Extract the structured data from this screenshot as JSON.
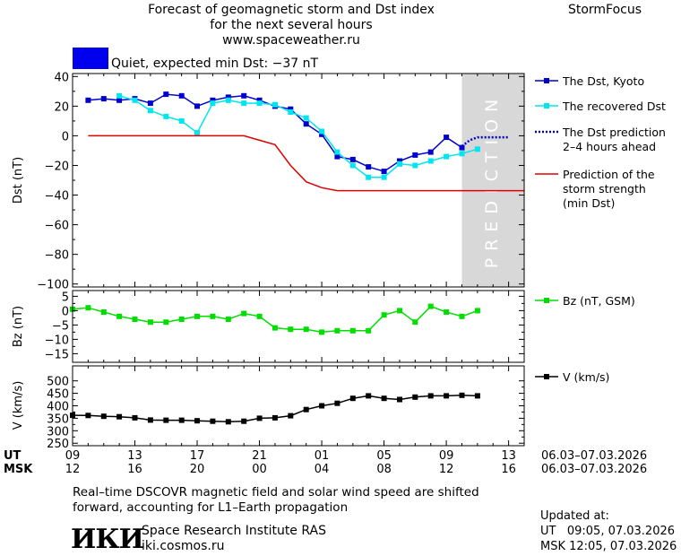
{
  "header": {
    "title_line1": "Forecast of geomagnetic storm and Dst index",
    "title_line2": "for the next several hours",
    "title_line3": "www.spaceweather.ru",
    "brand": "StormFocus"
  },
  "status": {
    "text": "Quiet, expected min Dst: −37 nT",
    "color": "#0000ee"
  },
  "chart_data": [
    {
      "type": "line",
      "ylabel": "Dst (nT)",
      "ylim": [
        -102,
        42
      ],
      "yticks": [
        40,
        20,
        0,
        -20,
        -40,
        -60,
        -80,
        -100
      ],
      "ytick_labels": [
        "40",
        "20",
        "0",
        "−20",
        "−40",
        "−60",
        "−80",
        "−100"
      ],
      "prediction_band": {
        "label": "PREDICTION",
        "x_start": 10,
        "x_end": 14,
        "color": "#d8d8d8"
      },
      "series": [
        {
          "name": "The Dst, Kyoto",
          "color": "#0000cc",
          "marker": "square",
          "x": [
            -14,
            -13,
            -12,
            -11,
            -10,
            -9,
            -8,
            -7,
            -6,
            -5,
            -4,
            -3,
            -2,
            -1,
            0,
            1,
            2,
            3,
            4,
            5,
            6,
            7,
            8,
            9,
            10
          ],
          "y": [
            24,
            25,
            24,
            25,
            22,
            28,
            27,
            20,
            24,
            26,
            27,
            24,
            20,
            18,
            8,
            1,
            -14,
            -16,
            -21,
            -24,
            -17,
            -13,
            -11,
            -1,
            -8
          ]
        },
        {
          "name": "The recovered Dst",
          "color": "#00e5ee",
          "marker": "square",
          "x": [
            -12,
            -11,
            -10,
            -9,
            -8,
            -7,
            -6,
            -5,
            -4,
            -3,
            -2,
            -1,
            0,
            1,
            2,
            3,
            4,
            5,
            6,
            7,
            8,
            9,
            10,
            11
          ],
          "y": [
            27,
            24,
            17,
            13,
            10,
            2,
            22,
            24,
            22,
            22,
            21,
            16,
            12,
            3,
            -11,
            -20,
            -28,
            -28,
            -19,
            -20,
            -17,
            -14,
            -12,
            -9
          ]
        },
        {
          "name": "The Dst prediction 2–4 hours ahead",
          "color": "#0000cc",
          "dashed": true,
          "x": [
            10,
            10.5,
            11,
            11.5,
            12,
            13
          ],
          "y": [
            -7,
            -3,
            -1,
            -1,
            -1,
            -1
          ]
        },
        {
          "name": "Prediction of the storm strength (min Dst)",
          "color": "#dd0000",
          "x": [
            -14,
            -4,
            -3,
            -2,
            -1,
            0,
            1,
            2,
            3,
            4,
            5,
            6,
            7,
            8,
            9,
            10,
            11,
            12,
            13,
            14
          ],
          "y": [
            0,
            0,
            -3,
            -6,
            -20,
            -31,
            -35,
            -37,
            -37,
            -37,
            -37,
            -37,
            -37,
            -37,
            -37,
            -37,
            -37,
            -37,
            -37,
            -37
          ]
        }
      ],
      "legend_lines": [
        [
          "The Dst, Kyoto"
        ],
        [
          "The recovered Dst"
        ],
        [
          "The Dst prediction",
          "2–4 hours ahead"
        ],
        [
          "Prediction of the",
          "storm strength",
          "(min Dst)"
        ]
      ]
    },
    {
      "type": "line",
      "ylabel": "Bz (nT)",
      "ylim": [
        -18,
        7
      ],
      "yticks": [
        5,
        0,
        -5,
        -10,
        -15
      ],
      "ytick_labels": [
        "5",
        "0",
        "−5",
        "−10",
        "−15"
      ],
      "series": [
        {
          "name": "Bz (nT, GSM)",
          "color": "#00dd00",
          "marker": "square",
          "x": [
            -15,
            -14,
            -13,
            -12,
            -11,
            -10,
            -9,
            -8,
            -7,
            -6,
            -5,
            -4,
            -3,
            -2,
            -1,
            0,
            1,
            2,
            3,
            4,
            5,
            6,
            7,
            8,
            9,
            10,
            11
          ],
          "y": [
            0.5,
            1,
            -0.5,
            -2,
            -3,
            -4,
            -4,
            -3,
            -2,
            -2,
            -3,
            -1,
            -2,
            -6,
            -6.5,
            -6.5,
            -7.5,
            -7,
            -7,
            -7,
            -1.5,
            0,
            -4,
            1.5,
            -0.5,
            -2,
            0
          ]
        }
      ]
    },
    {
      "type": "line",
      "ylabel": "V (km/s)",
      "ylim": [
        240,
        560
      ],
      "yticks": [
        500,
        450,
        400,
        350,
        300,
        250
      ],
      "ytick_labels": [
        "500",
        "450",
        "400",
        "350",
        "300",
        "250"
      ],
      "series": [
        {
          "name": "V (km/s)",
          "color": "#000000",
          "marker": "square",
          "x": [
            -15,
            -14,
            -13,
            -12,
            -11,
            -10,
            -9,
            -8,
            -7,
            -6,
            -5,
            -4,
            -3,
            -2,
            -1,
            0,
            1,
            2,
            3,
            4,
            5,
            6,
            7,
            8,
            9,
            10,
            11
          ],
          "y": [
            362,
            361,
            358,
            356,
            352,
            343,
            342,
            342,
            340,
            338,
            336,
            338,
            350,
            352,
            360,
            385,
            400,
            410,
            430,
            440,
            430,
            425,
            435,
            440,
            440,
            442,
            440
          ]
        }
      ]
    }
  ],
  "time_axis": {
    "xlim": [
      -15,
      14
    ],
    "ticks": [
      -15,
      -11,
      -7,
      -3,
      1,
      5,
      9,
      13
    ],
    "ut_label": "UT",
    "msk_label": "MSK",
    "ut_ticks": [
      "09",
      "13",
      "17",
      "21",
      "01",
      "05",
      "09",
      "13"
    ],
    "msk_ticks": [
      "12",
      "16",
      "20",
      "00",
      "04",
      "08",
      "12",
      "16"
    ],
    "ut_date_range": "06.03–07.03.2026",
    "msk_date_range": "06.03–07.03.2026"
  },
  "footer": {
    "note_line1": "Real–time DSCOVR magnetic field and solar wind speed are shifted",
    "note_line2": "forward, accounting for L1–Earth propagation",
    "logo": "ИКИ",
    "institute": "Space Research Institute RAS",
    "site": "iki.cosmos.ru",
    "updated_label": "Updated at:",
    "updated_ut": "UT   09:05, 07.03.2026",
    "updated_msk": "MSK 12:05, 07.03.2026"
  }
}
